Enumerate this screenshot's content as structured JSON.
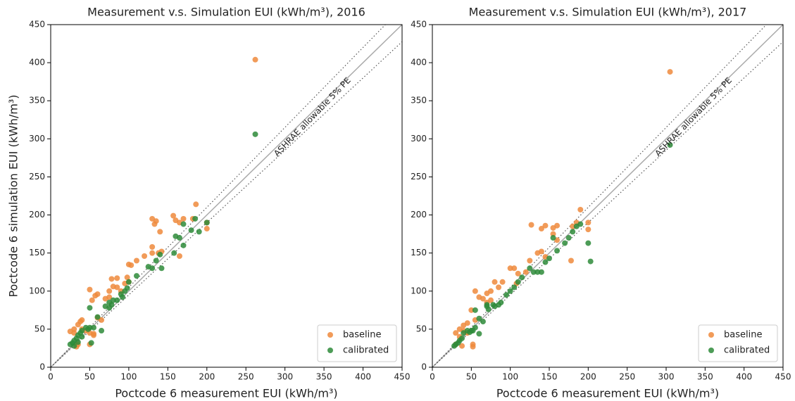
{
  "chart_data": [
    {
      "type": "scatter",
      "title": "Measurement v.s. Simulation EUI (kWh/m³), 2016",
      "x_label": "Poctcode 6 measurement EUI (kWh/m³)",
      "y_label": "Poctcode 6 simulation EUI (kWh/m³)",
      "annotation": "ASHRAE allowable 5% PE",
      "xlim": [
        0,
        450
      ],
      "ylim": [
        0,
        450
      ],
      "xticks": [
        0,
        50,
        100,
        150,
        200,
        250,
        300,
        350,
        400,
        450
      ],
      "yticks": [
        0,
        50,
        100,
        150,
        200,
        250,
        300,
        350,
        400,
        450
      ],
      "grid": false,
      "legend": "lower right",
      "reference_lines": [
        {
          "slope": 1,
          "style": "solid"
        },
        {
          "slope": 1.05,
          "style": "dotted"
        },
        {
          "slope": 0.95,
          "style": "dotted"
        }
      ],
      "series": [
        {
          "name": "baseline",
          "color": "#ee8a3c",
          "x": [
            262,
            186,
            130,
            135,
            133,
            157,
            160,
            165,
            170,
            182,
            200,
            200,
            165,
            130,
            138,
            130,
            142,
            140,
            120,
            110,
            100,
            103,
            98,
            100,
            95,
            78,
            80,
            85,
            85,
            90,
            75,
            75,
            70,
            60,
            57,
            50,
            53,
            60,
            65,
            40,
            38,
            35,
            30,
            25,
            30,
            40,
            45,
            50,
            55,
            35,
            33,
            50,
            55
          ],
          "values": [
            404,
            214,
            195,
            192,
            188,
            199,
            193,
            190,
            195,
            195,
            190,
            182,
            146,
            158,
            150,
            150,
            152,
            178,
            146,
            140,
            135,
            134,
            118,
            112,
            110,
            116,
            106,
            117,
            105,
            100,
            100,
            92,
            90,
            96,
            94,
            102,
            88,
            65,
            62,
            62,
            60,
            56,
            50,
            47,
            45,
            50,
            48,
            45,
            44,
            30,
            27,
            30,
            42
          ]
        },
        {
          "name": "calibrated",
          "color": "#2e8b3a",
          "x": [
            262,
            200,
            190,
            185,
            180,
            170,
            160,
            165,
            170,
            158,
            140,
            135,
            142,
            130,
            125,
            110,
            100,
            98,
            95,
            92,
            90,
            85,
            80,
            78,
            75,
            75,
            70,
            65,
            60,
            55,
            50,
            50,
            48,
            45,
            40,
            38,
            40,
            35,
            33,
            30,
            28,
            25,
            30,
            35,
            52
          ],
          "values": [
            306,
            190,
            178,
            195,
            180,
            188,
            172,
            170,
            160,
            150,
            148,
            140,
            130,
            130,
            132,
            120,
            112,
            104,
            100,
            92,
            96,
            88,
            88,
            82,
            85,
            78,
            80,
            48,
            66,
            52,
            78,
            52,
            50,
            52,
            48,
            45,
            40,
            42,
            38,
            35,
            32,
            30,
            28,
            33,
            32
          ]
        }
      ]
    },
    {
      "type": "scatter",
      "title": "Measurement v.s. Simulation EUI (kWh/m³), 2017",
      "x_label": "Poctcode 6 measurement EUI (kWh/m³)",
      "annotation": "ASHRAE allowable 5% PE",
      "xlim": [
        0,
        450
      ],
      "ylim": [
        0,
        450
      ],
      "xticks": [
        0,
        50,
        100,
        150,
        200,
        250,
        300,
        350,
        400,
        450
      ],
      "yticks": [
        0,
        50,
        100,
        150,
        200,
        250,
        300,
        350,
        400,
        450
      ],
      "grid": false,
      "legend": "lower right",
      "reference_lines": [
        {
          "slope": 1,
          "style": "solid"
        },
        {
          "slope": 1.05,
          "style": "dotted"
        },
        {
          "slope": 0.95,
          "style": "dotted"
        }
      ],
      "series": [
        {
          "name": "baseline",
          "color": "#ee8a3c",
          "x": [
            305,
            190,
            185,
            180,
            160,
            155,
            145,
            140,
            127,
            125,
            135,
            140,
            145,
            178,
            200,
            200,
            155,
            160,
            105,
            100,
            110,
            120,
            108,
            90,
            80,
            85,
            75,
            70,
            60,
            55,
            65,
            70,
            75,
            50,
            55,
            45,
            40,
            35,
            40,
            30,
            35,
            45,
            52,
            52,
            30,
            38
          ],
          "values": [
            388,
            207,
            190,
            185,
            186,
            183,
            186,
            182,
            187,
            140,
            150,
            152,
            145,
            140,
            190,
            181,
            175,
            167,
            130,
            130,
            123,
            125,
            110,
            112,
            112,
            105,
            100,
            97,
            92,
            100,
            90,
            85,
            88,
            75,
            62,
            58,
            55,
            50,
            48,
            45,
            40,
            45,
            30,
            27,
            30,
            28
          ]
        },
        {
          "name": "calibrated",
          "color": "#2e8b3a",
          "x": [
            305,
            200,
            203,
            190,
            185,
            180,
            175,
            170,
            160,
            155,
            150,
            145,
            135,
            140,
            130,
            125,
            115,
            110,
            105,
            100,
            95,
            88,
            85,
            80,
            78,
            72,
            70,
            65,
            60,
            55,
            52,
            50,
            48,
            45,
            40,
            38,
            35,
            33,
            30,
            28,
            60,
            55,
            70
          ],
          "values": [
            292,
            163,
            139,
            188,
            185,
            178,
            170,
            163,
            153,
            170,
            143,
            138,
            125,
            125,
            125,
            130,
            118,
            112,
            105,
            100,
            95,
            85,
            82,
            80,
            82,
            76,
            82,
            60,
            64,
            52,
            48,
            48,
            46,
            48,
            45,
            38,
            35,
            32,
            30,
            28,
            44,
            75,
            80
          ]
        }
      ]
    }
  ]
}
